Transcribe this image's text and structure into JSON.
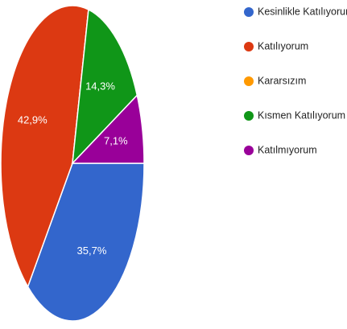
{
  "chart_data": {
    "type": "pie",
    "categories": [
      "Kesinlikle Katılıyorum",
      "Katılıyorum",
      "Kararsızım",
      "Kısmen Katılıyorum",
      "Katılmıyorum"
    ],
    "values": [
      35.7,
      42.9,
      0,
      14.3,
      7.1
    ],
    "value_labels": [
      "35,7%",
      "42,9%",
      null,
      "14,3%",
      "7,1%"
    ],
    "colors": [
      "#3366cc",
      "#dc3912",
      "#ff9900",
      "#109618",
      "#990099"
    ],
    "legend": "right"
  }
}
